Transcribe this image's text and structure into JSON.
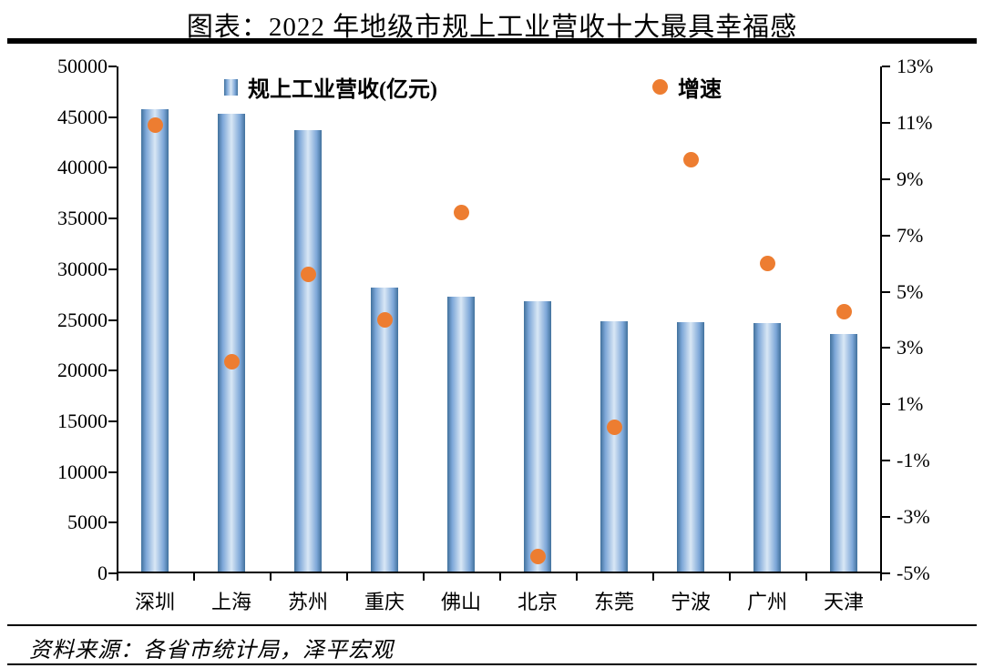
{
  "title": "图表：2022 年地级市规上工业营收十大最具幸福感",
  "source": "资料来源：各省市统计局，泽平宏观",
  "chart_data": {
    "type": "bar",
    "title": "图表：2022 年地级市规上工业营收十大最具幸福感",
    "categories": [
      "深圳",
      "上海",
      "苏州",
      "重庆",
      "佛山",
      "北京",
      "东莞",
      "宁波",
      "广州",
      "天津"
    ],
    "series": [
      {
        "name": "规上工业营收(亿元)",
        "type": "bar",
        "axis": "left",
        "values": [
          45800,
          45300,
          43700,
          28200,
          27300,
          26800,
          24900,
          24800,
          24700,
          23600
        ]
      },
      {
        "name": "增速",
        "type": "scatter",
        "axis": "right",
        "values": [
          10.9,
          2.5,
          5.6,
          4.0,
          7.8,
          -4.4,
          0.2,
          9.7,
          6.0,
          4.3
        ]
      }
    ],
    "left_axis": {
      "min": 0,
      "max": 50000,
      "step": 5000,
      "tick_labels": [
        "0",
        "5000",
        "10000",
        "15000",
        "20000",
        "25000",
        "30000",
        "35000",
        "40000",
        "45000",
        "50000"
      ]
    },
    "right_axis": {
      "min": -5,
      "max": 13,
      "step": 2,
      "tick_labels": [
        "-5%",
        "-3%",
        "-1%",
        "1%",
        "3%",
        "5%",
        "7%",
        "9%",
        "11%",
        "13%"
      ]
    },
    "legend": [
      {
        "label": "规上工业营收(亿元)",
        "marker": "square",
        "color": "#4f81bd"
      },
      {
        "label": "增速",
        "marker": "circle",
        "color": "#ed7d31"
      }
    ],
    "legend_position": "top-inside",
    "grid": false,
    "colors": {
      "bar_edge": "#41719c",
      "bar_center": "#d9e7f5",
      "dot": "#ed7d31",
      "axis": "#000000"
    }
  }
}
